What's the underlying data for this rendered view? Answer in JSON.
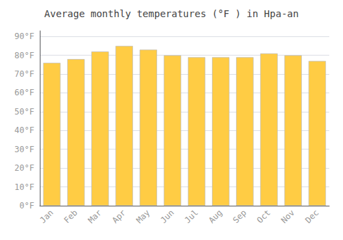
{
  "chart_data": {
    "type": "bar",
    "title": "Average monthly temperatures (°F ) in Hpa-an",
    "categories": [
      "Jan",
      "Feb",
      "Mar",
      "Apr",
      "May",
      "Jun",
      "Jul",
      "Aug",
      "Sep",
      "Oct",
      "Nov",
      "Dec"
    ],
    "values": [
      76,
      78,
      82,
      85,
      83,
      80,
      79,
      79,
      79,
      81,
      80,
      77
    ],
    "color": "#FFCC44",
    "ylim": [
      0,
      93
    ],
    "yticks": [
      {
        "value": 0,
        "label": "0°F"
      },
      {
        "value": 10,
        "label": "10°F"
      },
      {
        "value": 20,
        "label": "20°F"
      },
      {
        "value": 30,
        "label": "30°F"
      },
      {
        "value": 40,
        "label": "40°F"
      },
      {
        "value": 50,
        "label": "50°F"
      },
      {
        "value": 60,
        "label": "60°F"
      },
      {
        "value": 70,
        "label": "70°F"
      },
      {
        "value": 80,
        "label": "80°F"
      },
      {
        "value": 90,
        "label": "90°F"
      }
    ],
    "grid": true
  }
}
